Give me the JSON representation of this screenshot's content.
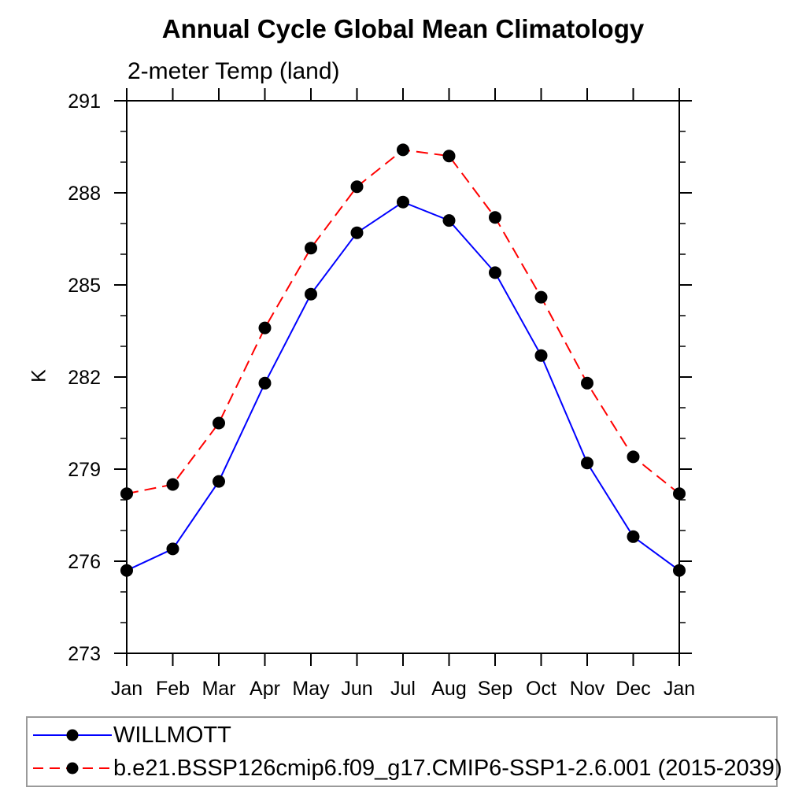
{
  "chart_data": {
    "type": "line",
    "title": "Annual Cycle Global Mean Climatology",
    "subtitle": "2-meter Temp (land)",
    "ylabel": "K",
    "x_tick_labels": [
      "Jan",
      "Feb",
      "Mar",
      "Apr",
      "May",
      "Jun",
      "Jul",
      "Aug",
      "Sep",
      "Oct",
      "Nov",
      "Dec",
      "Jan"
    ],
    "y_ticks": [
      273,
      276,
      279,
      282,
      285,
      288,
      291
    ],
    "y_minor_step": 1,
    "ylim": [
      273,
      291
    ],
    "grid": false,
    "frame": "box-with-outward-ticks",
    "legend_position": "bottom-left-box",
    "axis_color": "#000000",
    "marker_color": "#000000",
    "series": [
      {
        "name": "WILLMOTT",
        "color": "#0000ff",
        "line_style": "solid",
        "marker": "filled-circle",
        "values": [
          275.7,
          276.4,
          278.6,
          281.8,
          284.7,
          286.7,
          287.7,
          287.1,
          285.4,
          282.7,
          279.2,
          276.8,
          275.7
        ]
      },
      {
        "name": "b.e21.BSSP126cmip6.f09_g17.CMIP6-SSP1-2.6.001 (2015-2039)",
        "color": "#ff0000",
        "line_style": "dashed",
        "marker": "filled-circle",
        "values": [
          278.2,
          278.5,
          280.5,
          283.6,
          286.2,
          288.2,
          289.4,
          289.2,
          287.2,
          284.6,
          281.8,
          279.4,
          278.2
        ]
      }
    ]
  }
}
